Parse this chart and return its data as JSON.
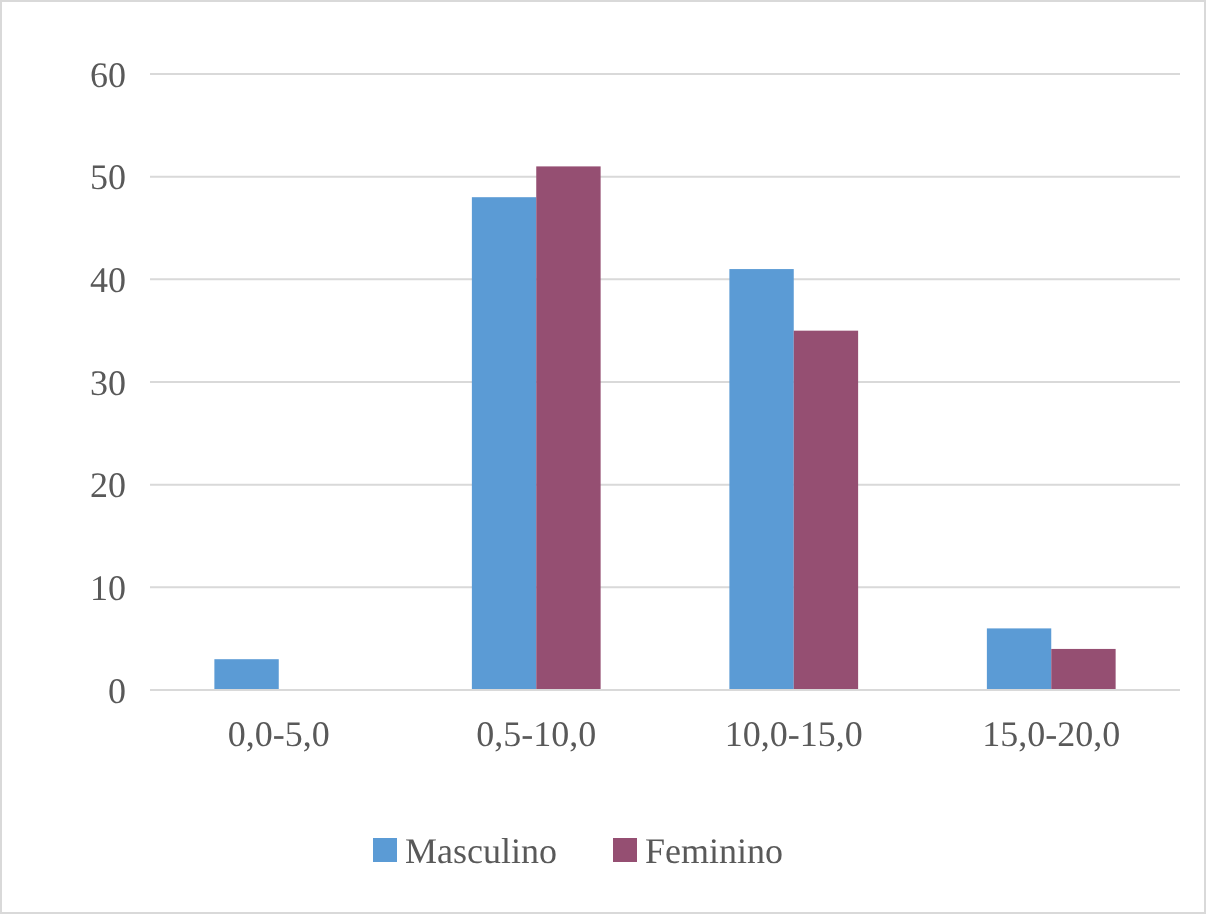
{
  "chart_data": {
    "type": "bar",
    "categories": [
      "0,0-5,0",
      "0,5-10,0",
      "10,0-15,0",
      "15,0-20,0"
    ],
    "series": [
      {
        "name": "Masculino",
        "color": "#5b9bd5",
        "values": [
          3,
          48,
          41,
          6
        ]
      },
      {
        "name": "Feminino",
        "color": "#954f72",
        "values": [
          0,
          51,
          35,
          4
        ]
      }
    ],
    "ylim": [
      0,
      60
    ],
    "yticks": [
      0,
      10,
      20,
      30,
      40,
      50,
      60
    ],
    "grid": "y",
    "legend": "bottom"
  }
}
